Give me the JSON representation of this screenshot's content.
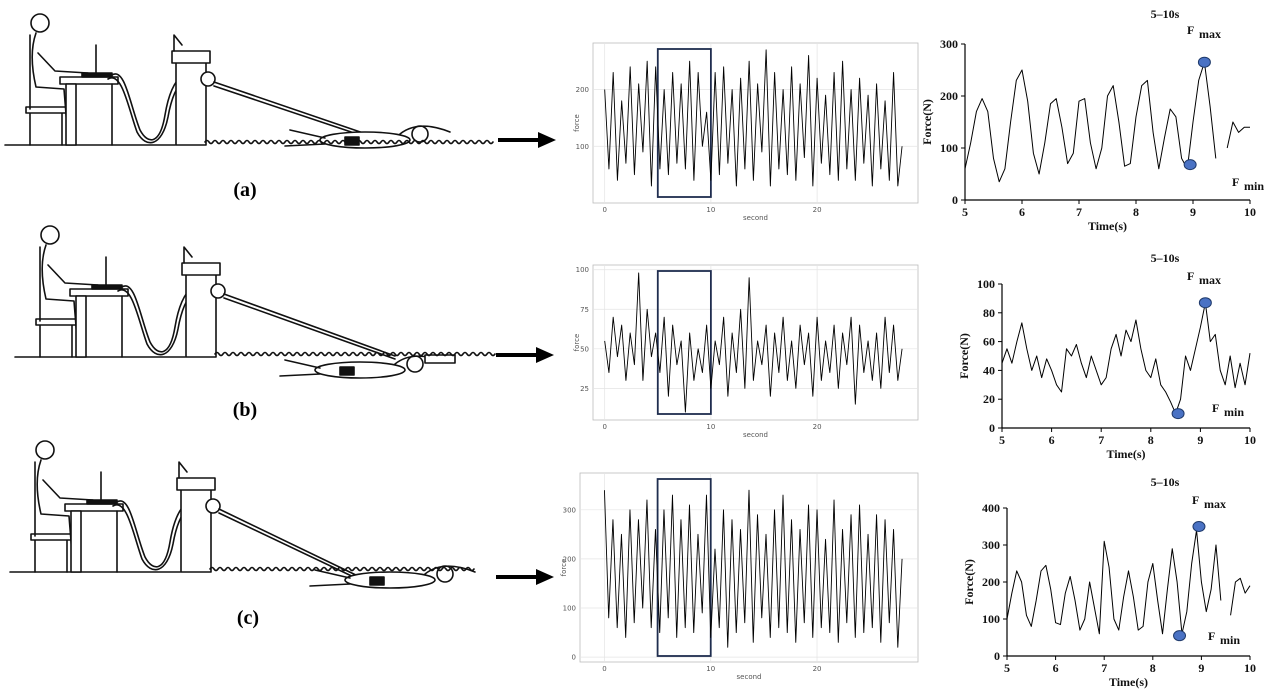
{
  "panel_labels": [
    "(a)",
    "(b)",
    "(c)"
  ],
  "chart_data": [
    {
      "type": "line",
      "x_label": "second",
      "y_label": "force",
      "x": [
        0,
        0.4,
        0.8,
        1.2,
        1.6,
        2,
        2.4,
        2.8,
        3.2,
        3.6,
        4,
        4.4,
        4.8,
        5.2,
        5.6,
        6,
        6.4,
        6.8,
        7.2,
        7.6,
        8,
        8.4,
        8.8,
        9.2,
        9.6,
        10,
        10.4,
        10.8,
        11.2,
        11.6,
        12,
        12.4,
        12.8,
        13.2,
        13.6,
        14,
        14.4,
        14.8,
        15.2,
        15.6,
        16,
        16.4,
        16.8,
        17.2,
        17.6,
        18,
        18.4,
        18.8,
        19.2,
        19.6,
        20,
        20.4,
        20.8,
        21.2,
        21.6,
        22,
        22.4,
        22.8,
        23.2,
        23.6,
        24,
        24.4,
        24.8,
        25.2,
        25.6,
        26,
        26.4,
        26.8,
        27.2,
        27.6,
        28
      ],
      "values": [
        200,
        60,
        230,
        40,
        180,
        70,
        240,
        50,
        210,
        90,
        250,
        30,
        240,
        60,
        200,
        50,
        230,
        70,
        210,
        60,
        250,
        40,
        230,
        100,
        160,
        40,
        230,
        50,
        240,
        70,
        200,
        30,
        220,
        60,
        250,
        40,
        210,
        90,
        270,
        30,
        230,
        60,
        200,
        50,
        240,
        40,
        210,
        80,
        260,
        30,
        220,
        70,
        190,
        50,
        230,
        40,
        250,
        60,
        200,
        40,
        220,
        70,
        190,
        30,
        210,
        60,
        180,
        40,
        230,
        30,
        100
      ],
      "xlim": [
        -1.1,
        29.5
      ],
      "ylim": [
        0,
        282
      ],
      "xticks": [
        0,
        10,
        20
      ],
      "yticks": [
        100,
        200
      ],
      "grid": true,
      "color": "#000000",
      "highlight_x": [
        5,
        10
      ]
    },
    {
      "type": "line",
      "title": "5–10s",
      "x_label": "Time(s)",
      "y_label": "Force(N)",
      "x": [
        5,
        5.1,
        5.2,
        5.3,
        5.4,
        5.5,
        5.6,
        5.7,
        5.8,
        5.9,
        6,
        6.1,
        6.2,
        6.3,
        6.4,
        6.5,
        6.6,
        6.7,
        6.8,
        6.9,
        7,
        7.1,
        7.2,
        7.3,
        7.4,
        7.5,
        7.6,
        7.7,
        7.8,
        7.9,
        8,
        8.1,
        8.2,
        8.3,
        8.4,
        8.5,
        8.6,
        8.7,
        8.8,
        8.9,
        9,
        9.1,
        9.2,
        9.3,
        9.4,
        9.5,
        9.6,
        9.7,
        9.8,
        9.9,
        10
      ],
      "values": [
        60,
        110,
        170,
        195,
        170,
        80,
        35,
        60,
        150,
        230,
        250,
        190,
        90,
        50,
        110,
        185,
        195,
        140,
        70,
        90,
        190,
        195,
        110,
        60,
        100,
        200,
        220,
        150,
        65,
        70,
        160,
        220,
        230,
        130,
        60,
        120,
        175,
        160,
        80,
        60,
        150,
        230,
        265,
        180,
        80,
        null,
        100,
        150,
        130,
        140,
        140
      ],
      "xlim": [
        5,
        10
      ],
      "ylim": [
        0,
        300
      ],
      "xticks": [
        5,
        6,
        7,
        8,
        9,
        10
      ],
      "yticks": [
        0,
        100,
        200,
        300
      ],
      "grid": false,
      "color": "#000000",
      "points": [
        {
          "x": 9.2,
          "y": 265
        },
        {
          "x": 8.95,
          "y": 68
        }
      ],
      "point_color": "#4a72c4",
      "annotations": [
        {
          "text": "F",
          "sub": "max"
        },
        {
          "text": "F",
          "sub": "min"
        }
      ]
    },
    {
      "type": "line",
      "x_label": "second",
      "y_label": "force",
      "x": [
        0,
        0.4,
        0.8,
        1.2,
        1.6,
        2,
        2.4,
        2.8,
        3.2,
        3.6,
        4,
        4.4,
        4.8,
        5.2,
        5.6,
        6,
        6.4,
        6.8,
        7.2,
        7.6,
        8,
        8.4,
        8.8,
        9.2,
        9.6,
        10,
        10.4,
        10.8,
        11.2,
        11.6,
        12,
        12.4,
        12.8,
        13.2,
        13.6,
        14,
        14.4,
        14.8,
        15.2,
        15.6,
        16,
        16.4,
        16.8,
        17.2,
        17.6,
        18,
        18.4,
        18.8,
        19.2,
        19.6,
        20,
        20.4,
        20.8,
        21.2,
        21.6,
        22,
        22.4,
        22.8,
        23.2,
        23.6,
        24,
        24.4,
        24.8,
        25.2,
        25.6,
        26,
        26.4,
        26.8,
        27.2,
        27.6,
        28
      ],
      "values": [
        55,
        35,
        70,
        45,
        65,
        30,
        60,
        40,
        98,
        30,
        75,
        45,
        60,
        35,
        70,
        20,
        65,
        40,
        55,
        10,
        60,
        30,
        50,
        35,
        65,
        25,
        55,
        40,
        70,
        20,
        60,
        35,
        75,
        25,
        95,
        30,
        55,
        40,
        65,
        20,
        60,
        35,
        70,
        30,
        55,
        25,
        65,
        40,
        60,
        20,
        70,
        30,
        55,
        35,
        65,
        25,
        60,
        40,
        70,
        15,
        65,
        35,
        55,
        30,
        60,
        25,
        70,
        35,
        65,
        30,
        50
      ],
      "xlim": [
        -1.1,
        29.5
      ],
      "ylim": [
        5,
        103
      ],
      "xticks": [
        0,
        10,
        20
      ],
      "yticks": [
        25,
        50,
        75,
        100
      ],
      "grid": true,
      "color": "#000000",
      "highlight_x": [
        5,
        10
      ]
    },
    {
      "type": "line",
      "title": "5–10s",
      "x_label": "Time(s)",
      "y_label": "Force(N)",
      "x": [
        5,
        5.1,
        5.2,
        5.3,
        5.4,
        5.5,
        5.6,
        5.7,
        5.8,
        5.9,
        6,
        6.1,
        6.2,
        6.3,
        6.4,
        6.5,
        6.6,
        6.7,
        6.8,
        6.9,
        7,
        7.1,
        7.2,
        7.3,
        7.4,
        7.5,
        7.6,
        7.7,
        7.8,
        7.9,
        8,
        8.1,
        8.2,
        8.3,
        8.4,
        8.5,
        8.6,
        8.7,
        8.8,
        8.9,
        9,
        9.1,
        9.2,
        9.3,
        9.4,
        9.5,
        9.6,
        9.7,
        9.8,
        9.9,
        10
      ],
      "values": [
        45,
        55,
        45,
        60,
        73,
        55,
        40,
        50,
        35,
        48,
        40,
        30,
        25,
        55,
        50,
        58,
        45,
        35,
        50,
        40,
        30,
        35,
        55,
        65,
        50,
        68,
        60,
        75,
        55,
        40,
        35,
        48,
        30,
        25,
        18,
        10,
        20,
        50,
        40,
        55,
        70,
        87,
        60,
        65,
        40,
        30,
        50,
        28,
        45,
        30,
        52
      ],
      "xlim": [
        5,
        10
      ],
      "ylim": [
        0,
        100
      ],
      "xticks": [
        5,
        6,
        7,
        8,
        9,
        10
      ],
      "yticks": [
        0,
        20,
        40,
        60,
        80,
        100
      ],
      "grid": false,
      "color": "#000000",
      "points": [
        {
          "x": 9.1,
          "y": 87
        },
        {
          "x": 8.55,
          "y": 10
        }
      ],
      "point_color": "#4a72c4",
      "annotations": [
        {
          "text": "F",
          "sub": "max"
        },
        {
          "text": "F",
          "sub": "min"
        }
      ]
    },
    {
      "type": "line",
      "x_label": "second",
      "y_label": "force",
      "x": [
        0,
        0.4,
        0.8,
        1.2,
        1.6,
        2,
        2.4,
        2.8,
        3.2,
        3.6,
        4,
        4.4,
        4.8,
        5.2,
        5.6,
        6,
        6.4,
        6.8,
        7.2,
        7.6,
        8,
        8.4,
        8.8,
        9.2,
        9.6,
        10,
        10.4,
        10.8,
        11.2,
        11.6,
        12,
        12.4,
        12.8,
        13.2,
        13.6,
        14,
        14.4,
        14.8,
        15.2,
        15.6,
        16,
        16.4,
        16.8,
        17.2,
        17.6,
        18,
        18.4,
        18.8,
        19.2,
        19.6,
        20,
        20.4,
        20.8,
        21.2,
        21.6,
        22,
        22.4,
        22.8,
        23.2,
        23.6,
        24,
        24.4,
        24.8,
        25.2,
        25.6,
        26,
        26.4,
        26.8,
        27.2,
        27.6,
        28
      ],
      "values": [
        340,
        80,
        280,
        60,
        250,
        40,
        300,
        70,
        280,
        100,
        320,
        60,
        260,
        50,
        300,
        80,
        330,
        40,
        280,
        60,
        310,
        50,
        250,
        90,
        330,
        40,
        220,
        60,
        300,
        20,
        280,
        50,
        260,
        70,
        340,
        30,
        290,
        80,
        250,
        40,
        300,
        60,
        330,
        50,
        280,
        30,
        260,
        70,
        310,
        40,
        300,
        60,
        240,
        50,
        320,
        30,
        260,
        70,
        290,
        40,
        310,
        50,
        250,
        60,
        290,
        30,
        280,
        70,
        260,
        20,
        200
      ],
      "xlim": [
        -2.3,
        29.5
      ],
      "ylim": [
        -10,
        375
      ],
      "xticks": [
        0,
        10,
        20
      ],
      "yticks": [
        0,
        100,
        200,
        300
      ],
      "grid": true,
      "color": "#000000",
      "highlight_x": [
        5,
        10
      ]
    },
    {
      "type": "line",
      "title": "5–10s",
      "x_label": "Time(s)",
      "y_label": "Force(N)",
      "x": [
        5,
        5.1,
        5.2,
        5.3,
        5.4,
        5.5,
        5.6,
        5.7,
        5.8,
        5.9,
        6,
        6.1,
        6.2,
        6.3,
        6.4,
        6.5,
        6.6,
        6.7,
        6.8,
        6.9,
        7,
        7.1,
        7.2,
        7.3,
        7.4,
        7.5,
        7.6,
        7.7,
        7.8,
        7.9,
        8,
        8.1,
        8.2,
        8.3,
        8.4,
        8.5,
        8.6,
        8.7,
        8.8,
        8.9,
        9,
        9.1,
        9.2,
        9.3,
        9.4,
        9.5,
        9.6,
        9.7,
        9.8,
        9.9,
        10
      ],
      "values": [
        100,
        170,
        230,
        200,
        110,
        80,
        150,
        230,
        245,
        180,
        90,
        85,
        170,
        215,
        150,
        70,
        100,
        200,
        130,
        60,
        310,
        240,
        100,
        70,
        160,
        230,
        160,
        70,
        80,
        200,
        250,
        150,
        60,
        180,
        290,
        200,
        60,
        120,
        250,
        340,
        200,
        120,
        180,
        300,
        150,
        null,
        110,
        200,
        210,
        170,
        190
      ],
      "xlim": [
        5,
        10
      ],
      "ylim": [
        0,
        400
      ],
      "xticks": [
        5,
        6,
        7,
        8,
        9,
        10
      ],
      "yticks": [
        0,
        100,
        200,
        300,
        400
      ],
      "grid": false,
      "color": "#000000",
      "points": [
        {
          "x": 8.95,
          "y": 350
        },
        {
          "x": 8.55,
          "y": 55
        }
      ],
      "point_color": "#4a72c4",
      "annotations": [
        {
          "text": "F",
          "sub": "max"
        },
        {
          "text": "F",
          "sub": "min"
        }
      ]
    }
  ]
}
